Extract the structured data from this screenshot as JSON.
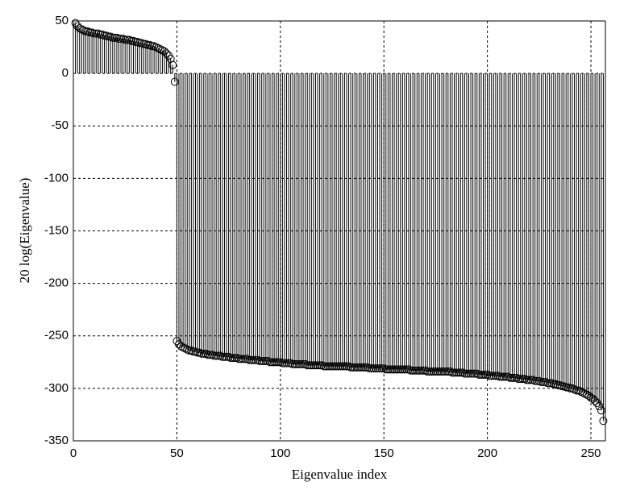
{
  "chart_data": {
    "type": "stem",
    "xlabel": "Eigenvalue index",
    "ylabel": "20 log(Eigenvalue)",
    "xlim": [
      0,
      257
    ],
    "ylim": [
      -350,
      50
    ],
    "xticks": [
      0,
      50,
      100,
      150,
      200,
      250
    ],
    "yticks": [
      -350,
      -300,
      -250,
      -200,
      -150,
      -100,
      -50,
      0,
      50
    ],
    "grid": true,
    "color": "#000000",
    "x": [
      1,
      2,
      3,
      4,
      5,
      6,
      7,
      8,
      9,
      10,
      11,
      12,
      13,
      14,
      15,
      16,
      17,
      18,
      19,
      20,
      21,
      22,
      23,
      24,
      25,
      26,
      27,
      28,
      29,
      30,
      31,
      32,
      33,
      34,
      35,
      36,
      37,
      38,
      39,
      40,
      41,
      42,
      43,
      44,
      45,
      46,
      47,
      48,
      49,
      50,
      51,
      52,
      53,
      54,
      55,
      56,
      57,
      58,
      59,
      60,
      61,
      62,
      63,
      64,
      65,
      66,
      67,
      68,
      69,
      70,
      71,
      72,
      73,
      74,
      75,
      76,
      77,
      78,
      79,
      80,
      81,
      82,
      83,
      84,
      85,
      86,
      87,
      88,
      89,
      90,
      91,
      92,
      93,
      94,
      95,
      96,
      97,
      98,
      99,
      100,
      101,
      102,
      103,
      104,
      105,
      106,
      107,
      108,
      109,
      110,
      111,
      112,
      113,
      114,
      115,
      116,
      117,
      118,
      119,
      120,
      121,
      122,
      123,
      124,
      125,
      126,
      127,
      128,
      129,
      130,
      131,
      132,
      133,
      134,
      135,
      136,
      137,
      138,
      139,
      140,
      141,
      142,
      143,
      144,
      145,
      146,
      147,
      148,
      149,
      150,
      151,
      152,
      153,
      154,
      155,
      156,
      157,
      158,
      159,
      160,
      161,
      162,
      163,
      164,
      165,
      166,
      167,
      168,
      169,
      170,
      171,
      172,
      173,
      174,
      175,
      176,
      177,
      178,
      179,
      180,
      181,
      182,
      183,
      184,
      185,
      186,
      187,
      188,
      189,
      190,
      191,
      192,
      193,
      194,
      195,
      196,
      197,
      198,
      199,
      200,
      201,
      202,
      203,
      204,
      205,
      206,
      207,
      208,
      209,
      210,
      211,
      212,
      213,
      214,
      215,
      216,
      217,
      218,
      219,
      220,
      221,
      222,
      223,
      224,
      225,
      226,
      227,
      228,
      229,
      230,
      231,
      232,
      233,
      234,
      235,
      236,
      237,
      238,
      239,
      240,
      241,
      242,
      243,
      244,
      245,
      246,
      247,
      248,
      249,
      250,
      251,
      252,
      253,
      254,
      255,
      256
    ],
    "values": [
      48,
      45,
      43,
      42,
      41,
      40,
      40,
      39,
      39,
      38,
      38,
      38,
      37,
      37,
      36,
      36,
      35,
      35,
      34,
      34,
      34,
      33,
      33,
      33,
      32,
      32,
      32,
      31,
      31,
      30,
      30,
      29,
      29,
      28,
      28,
      27,
      27,
      26,
      26,
      25,
      24,
      23,
      22,
      21,
      19,
      17,
      14,
      8,
      -8,
      -255,
      -258,
      -260,
      -261,
      -262,
      -263,
      -264,
      -264,
      -265,
      -265,
      -266,
      -266,
      -267,
      -267,
      -267,
      -268,
      -268,
      -268,
      -269,
      -269,
      -269,
      -269,
      -270,
      -270,
      -270,
      -270,
      -271,
      -271,
      -271,
      -271,
      -272,
      -272,
      -272,
      -272,
      -272,
      -273,
      -273,
      -273,
      -273,
      -273,
      -274,
      -274,
      -274,
      -274,
      -274,
      -275,
      -275,
      -275,
      -275,
      -275,
      -275,
      -276,
      -276,
      -276,
      -276,
      -276,
      -277,
      -277,
      -277,
      -277,
      -277,
      -277,
      -277,
      -278,
      -278,
      -278,
      -278,
      -278,
      -278,
      -278,
      -278,
      -279,
      -279,
      -279,
      -279,
      -279,
      -279,
      -279,
      -279,
      -279,
      -279,
      -279,
      -279,
      -279,
      -280,
      -280,
      -280,
      -280,
      -280,
      -280,
      -280,
      -280,
      -280,
      -281,
      -281,
      -281,
      -281,
      -281,
      -281,
      -281,
      -281,
      -282,
      -282,
      -282,
      -282,
      -282,
      -282,
      -282,
      -282,
      -282,
      -282,
      -282,
      -282,
      -283,
      -283,
      -283,
      -283,
      -283,
      -283,
      -283,
      -283,
      -284,
      -284,
      -284,
      -284,
      -284,
      -284,
      -284,
      -284,
      -284,
      -284,
      -284,
      -284,
      -285,
      -285,
      -285,
      -285,
      -285,
      -285,
      -286,
      -286,
      -286,
      -286,
      -286,
      -286,
      -286,
      -287,
      -287,
      -287,
      -287,
      -287,
      -288,
      -288,
      -288,
      -288,
      -288,
      -289,
      -289,
      -289,
      -289,
      -289,
      -290,
      -290,
      -290,
      -290,
      -291,
      -291,
      -291,
      -291,
      -292,
      -292,
      -292,
      -292,
      -293,
      -293,
      -293,
      -294,
      -294,
      -294,
      -295,
      -295,
      -295,
      -296,
      -296,
      -297,
      -297,
      -298,
      -298,
      -299,
      -299,
      -300,
      -300,
      -301,
      -302,
      -302,
      -303,
      -304,
      -305,
      -306,
      -307,
      -309,
      -310,
      -312,
      -314,
      -317,
      -321,
      -331
    ]
  }
}
